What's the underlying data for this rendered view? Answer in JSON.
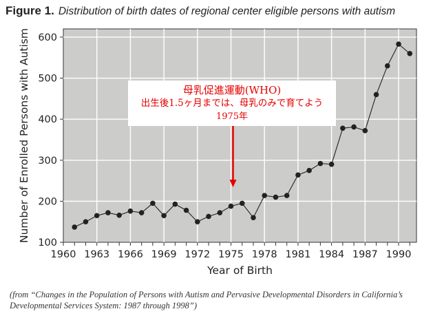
{
  "figure": {
    "label": "Figure 1.",
    "title": "Distribution of birth dates of regional center eligible persons with autism",
    "source": "(from “Changes in the Population of Persons with Autism and Pervasive Developmental Disorders in California’s Developmental Services System: 1987 through 1998”)"
  },
  "annotation": {
    "line1": "母乳促進運動(WHO)",
    "line2": "出生後1.5ヶ月までは、母乳のみで育てよう",
    "line3": "1975年",
    "color": "#e60000"
  },
  "chart_data": {
    "type": "line",
    "xlabel": "Year of Birth",
    "ylabel": "Number of Enrolled Persons with Autism",
    "xlim": [
      1960,
      1991.6
    ],
    "ylim": [
      100,
      620
    ],
    "x_ticks": [
      1960,
      1963,
      1966,
      1969,
      1972,
      1975,
      1978,
      1981,
      1984,
      1987,
      1990
    ],
    "y_ticks": [
      100,
      200,
      300,
      400,
      500,
      600
    ],
    "grid": true,
    "background": "#ccccca",
    "grid_color": "#ffffff",
    "line_color": "#222222",
    "marker": "filled-circle",
    "annotation_arrow_x": 1975,
    "x": [
      1961,
      1962,
      1963,
      1964,
      1965,
      1966,
      1967,
      1968,
      1969,
      1970,
      1971,
      1972,
      1973,
      1974,
      1975,
      1976,
      1977,
      1978,
      1979,
      1980,
      1981,
      1982,
      1983,
      1984,
      1985,
      1986,
      1987,
      1988,
      1989,
      1990,
      1991
    ],
    "y": [
      137,
      150,
      165,
      172,
      166,
      176,
      172,
      195,
      165,
      193,
      178,
      150,
      163,
      172,
      188,
      195,
      160,
      214,
      210,
      214,
      264,
      275,
      292,
      290,
      378,
      381,
      372,
      460,
      530,
      583,
      560
    ]
  }
}
